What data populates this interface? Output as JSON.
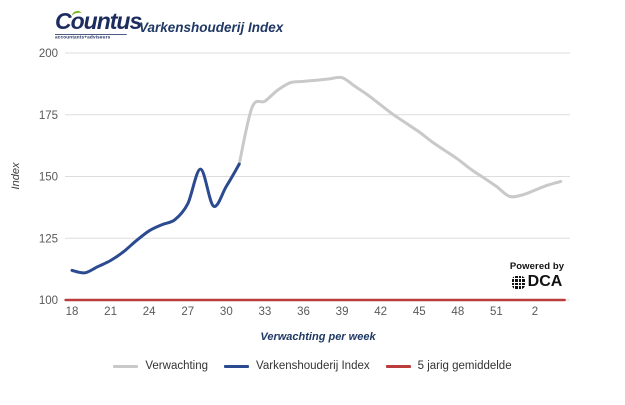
{
  "header": {
    "logo": {
      "brand": "Countus",
      "tagline": "accountants+adviseurs"
    },
    "title": "Varkenshouderij Index"
  },
  "badge": {
    "powered_by": "Powered by",
    "brand": "DCA"
  },
  "legend": {
    "items": [
      {
        "label": "Verwachting",
        "color": "#c9c9c9"
      },
      {
        "label": "Varkenshouderij Index",
        "color": "#2b4a8f"
      },
      {
        "label": "5 jarig gemiddelde",
        "color": "#bb3c3c"
      }
    ]
  },
  "chart_data": {
    "type": "line",
    "title": "Varkenshouderij Index",
    "xlabel": "Verwachting per week",
    "ylabel": "Index",
    "ylim": [
      100,
      200
    ],
    "grid": true,
    "legend_position": "bottom",
    "y_ticks": [
      100,
      125,
      150,
      175,
      200
    ],
    "x_tick_labels": [
      "18",
      "21",
      "24",
      "27",
      "30",
      "33",
      "36",
      "39",
      "42",
      "45",
      "48",
      "51",
      "2"
    ],
    "x_tick_week_positions": [
      18,
      21,
      24,
      27,
      30,
      33,
      36,
      39,
      42,
      45,
      48,
      51,
      54
    ],
    "series": [
      {
        "name": "Verwachting",
        "color": "#c9c9c9",
        "x": [
          31,
          32,
          33,
          34,
          35,
          36,
          37,
          38,
          39,
          40,
          41,
          42,
          43,
          44,
          45,
          46,
          47,
          48,
          49,
          50,
          51,
          52,
          53,
          54,
          55,
          56
        ],
        "values": [
          155,
          178,
          180.5,
          185,
          188,
          188.5,
          189,
          189.5,
          190,
          186.5,
          183,
          179,
          175,
          171.5,
          168,
          164,
          160.5,
          157,
          153,
          149.5,
          146,
          142,
          142.5,
          144.5,
          146.5,
          148
        ]
      },
      {
        "name": "Varkenshouderij Index",
        "color": "#2b4a8f",
        "x": [
          18,
          19,
          20,
          21,
          22,
          23,
          24,
          25,
          26,
          27,
          28,
          29,
          30,
          31
        ],
        "values": [
          112,
          111,
          113.5,
          116,
          119.5,
          124,
          128,
          130.5,
          132.5,
          139,
          153,
          138,
          146,
          155
        ]
      },
      {
        "name": "5 jarig gemiddelde",
        "color": "#bb3c3c",
        "x": [
          17.5,
          56.3
        ],
        "values": [
          100,
          100
        ]
      }
    ]
  }
}
